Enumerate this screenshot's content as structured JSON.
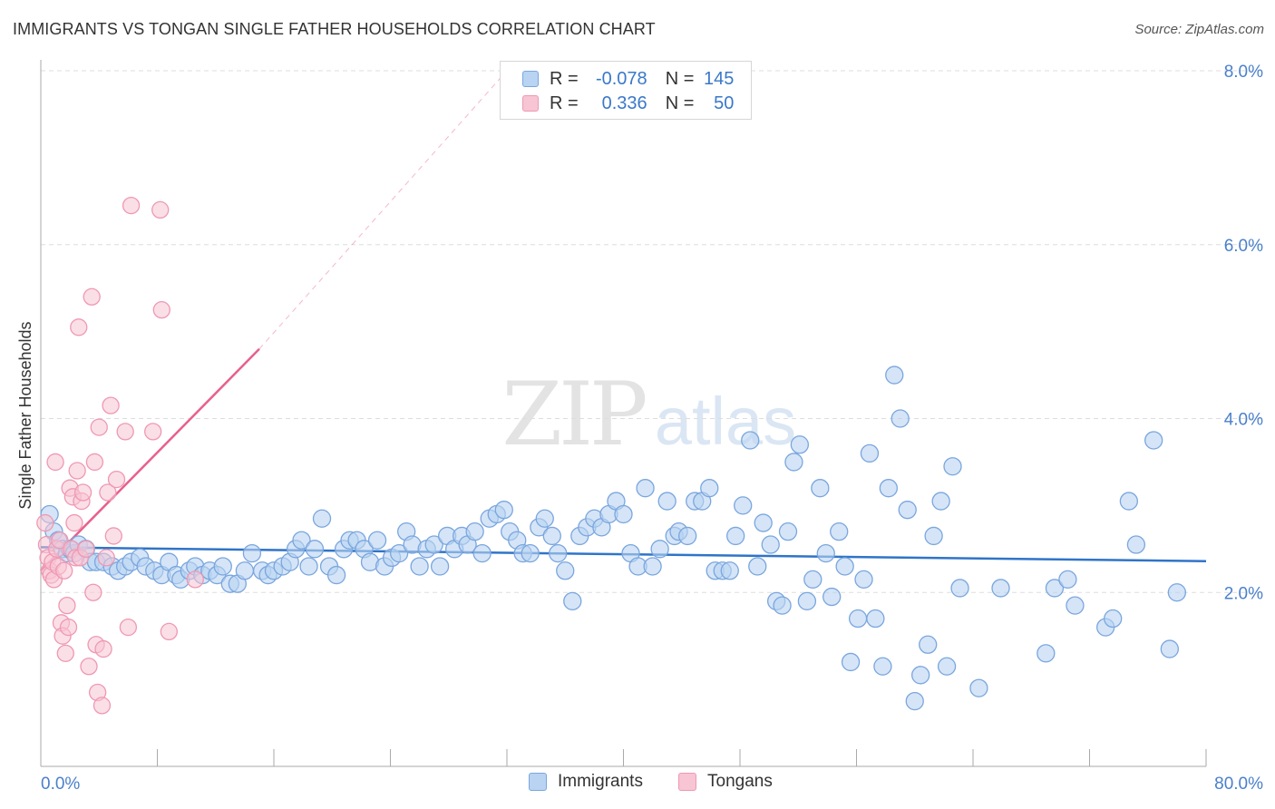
{
  "title": "IMMIGRANTS VS TONGAN SINGLE FATHER HOUSEHOLDS CORRELATION CHART",
  "source": "Source: ZipAtlas.com",
  "colors": {
    "immigrants_fill": "#b9d3f2",
    "immigrants_stroke": "#7aa6de",
    "immigrants_line": "#2f74c8",
    "tongans_fill": "#f7c5d4",
    "tongans_stroke": "#ef98b3",
    "tongans_line": "#e8608c",
    "axis_text": "#4a80cc",
    "grid": "#dddddd"
  },
  "legend_stats": [
    {
      "series": "Immigrants",
      "r_label": "R =",
      "r_value": "-0.078",
      "n_label": "N =",
      "n_value": "145"
    },
    {
      "series": "Tongans",
      "r_label": "R =",
      "r_value": "0.336",
      "n_label": "N =",
      "n_value": "50"
    }
  ],
  "chart_data": {
    "type": "scatter",
    "title": "IMMIGRANTS VS TONGAN SINGLE FATHER HOUSEHOLDS CORRELATION CHART",
    "xlabel": "",
    "ylabel": "Single Father Households",
    "xlim": [
      0,
      80
    ],
    "ylim": [
      0,
      8
    ],
    "x_tick_labels": [
      "0.0%",
      "80.0%"
    ],
    "y_ticks": [
      2,
      4,
      6,
      8
    ],
    "y_tick_labels": [
      "2.0%",
      "4.0%",
      "6.0%",
      "8.0%"
    ],
    "grid": "horizontal dashed",
    "legend": "bottom-center",
    "watermark": "ZIPatlas",
    "series": [
      {
        "name": "Immigrants",
        "r": -0.078,
        "n": 145,
        "trend": {
          "x": [
            0,
            80
          ],
          "y": [
            2.52,
            2.36
          ]
        },
        "points": [
          [
            0.6,
            2.9
          ],
          [
            0.9,
            2.7
          ],
          [
            1.2,
            2.6
          ],
          [
            1.5,
            2.5
          ],
          [
            1.8,
            2.45
          ],
          [
            2.0,
            2.5
          ],
          [
            2.3,
            2.45
          ],
          [
            2.6,
            2.55
          ],
          [
            3.1,
            2.5
          ],
          [
            3.4,
            2.35
          ],
          [
            3.8,
            2.35
          ],
          [
            4.3,
            2.35
          ],
          [
            4.9,
            2.3
          ],
          [
            5.3,
            2.25
          ],
          [
            5.8,
            2.3
          ],
          [
            6.2,
            2.35
          ],
          [
            6.8,
            2.4
          ],
          [
            7.2,
            2.3
          ],
          [
            7.8,
            2.25
          ],
          [
            8.3,
            2.2
          ],
          [
            8.8,
            2.35
          ],
          [
            9.3,
            2.2
          ],
          [
            9.6,
            2.15
          ],
          [
            10.2,
            2.25
          ],
          [
            10.6,
            2.3
          ],
          [
            11.1,
            2.2
          ],
          [
            11.6,
            2.25
          ],
          [
            12.1,
            2.2
          ],
          [
            12.5,
            2.3
          ],
          [
            13.0,
            2.1
          ],
          [
            13.5,
            2.1
          ],
          [
            14.0,
            2.25
          ],
          [
            14.5,
            2.45
          ],
          [
            15.2,
            2.25
          ],
          [
            15.6,
            2.2
          ],
          [
            16.0,
            2.25
          ],
          [
            16.6,
            2.3
          ],
          [
            17.1,
            2.35
          ],
          [
            17.5,
            2.5
          ],
          [
            17.9,
            2.6
          ],
          [
            18.4,
            2.3
          ],
          [
            18.8,
            2.5
          ],
          [
            19.3,
            2.85
          ],
          [
            19.8,
            2.3
          ],
          [
            20.3,
            2.2
          ],
          [
            20.8,
            2.5
          ],
          [
            21.2,
            2.6
          ],
          [
            21.7,
            2.6
          ],
          [
            22.2,
            2.5
          ],
          [
            22.6,
            2.35
          ],
          [
            23.1,
            2.6
          ],
          [
            23.6,
            2.3
          ],
          [
            24.1,
            2.4
          ],
          [
            24.6,
            2.45
          ],
          [
            25.1,
            2.7
          ],
          [
            25.5,
            2.55
          ],
          [
            26.0,
            2.3
          ],
          [
            26.5,
            2.5
          ],
          [
            27.0,
            2.55
          ],
          [
            27.4,
            2.3
          ],
          [
            27.9,
            2.65
          ],
          [
            28.4,
            2.5
          ],
          [
            28.9,
            2.65
          ],
          [
            29.3,
            2.55
          ],
          [
            29.8,
            2.7
          ],
          [
            30.3,
            2.45
          ],
          [
            30.8,
            2.85
          ],
          [
            31.3,
            2.9
          ],
          [
            31.8,
            2.95
          ],
          [
            32.2,
            2.7
          ],
          [
            32.7,
            2.6
          ],
          [
            33.1,
            2.45
          ],
          [
            33.6,
            2.45
          ],
          [
            34.2,
            2.75
          ],
          [
            34.6,
            2.85
          ],
          [
            35.1,
            2.65
          ],
          [
            35.5,
            2.45
          ],
          [
            36.0,
            2.25
          ],
          [
            36.5,
            1.9
          ],
          [
            37.0,
            2.65
          ],
          [
            37.5,
            2.75
          ],
          [
            38.0,
            2.85
          ],
          [
            38.5,
            2.75
          ],
          [
            39.0,
            2.9
          ],
          [
            39.5,
            3.05
          ],
          [
            40.0,
            2.9
          ],
          [
            40.5,
            2.45
          ],
          [
            41.0,
            2.3
          ],
          [
            41.5,
            3.2
          ],
          [
            42.0,
            2.3
          ],
          [
            42.5,
            2.5
          ],
          [
            43.0,
            3.05
          ],
          [
            43.5,
            2.65
          ],
          [
            43.8,
            2.7
          ],
          [
            44.4,
            2.65
          ],
          [
            44.9,
            3.05
          ],
          [
            45.4,
            3.05
          ],
          [
            45.9,
            3.2
          ],
          [
            46.3,
            2.25
          ],
          [
            46.8,
            2.25
          ],
          [
            47.3,
            2.25
          ],
          [
            47.7,
            2.65
          ],
          [
            48.2,
            3.0
          ],
          [
            48.7,
            3.75
          ],
          [
            49.2,
            2.3
          ],
          [
            49.6,
            2.8
          ],
          [
            50.1,
            2.55
          ],
          [
            50.5,
            1.9
          ],
          [
            50.9,
            1.85
          ],
          [
            51.3,
            2.7
          ],
          [
            51.7,
            3.5
          ],
          [
            52.1,
            3.7
          ],
          [
            52.6,
            1.9
          ],
          [
            53.0,
            2.15
          ],
          [
            53.5,
            3.2
          ],
          [
            53.9,
            2.45
          ],
          [
            54.3,
            1.95
          ],
          [
            54.8,
            2.7
          ],
          [
            55.2,
            2.3
          ],
          [
            55.6,
            1.2
          ],
          [
            56.1,
            1.7
          ],
          [
            56.5,
            2.15
          ],
          [
            56.9,
            3.6
          ],
          [
            57.3,
            1.7
          ],
          [
            57.8,
            1.15
          ],
          [
            58.2,
            3.2
          ],
          [
            58.6,
            4.5
          ],
          [
            59.0,
            4.0
          ],
          [
            59.5,
            2.95
          ],
          [
            60.0,
            0.75
          ],
          [
            60.4,
            1.05
          ],
          [
            60.9,
            1.4
          ],
          [
            61.3,
            2.65
          ],
          [
            61.8,
            3.05
          ],
          [
            62.2,
            1.15
          ],
          [
            62.6,
            3.45
          ],
          [
            63.1,
            2.05
          ],
          [
            64.4,
            0.9
          ],
          [
            65.9,
            2.05
          ],
          [
            69.0,
            1.3
          ],
          [
            69.6,
            2.05
          ],
          [
            70.5,
            2.15
          ],
          [
            71.0,
            1.85
          ],
          [
            73.1,
            1.6
          ],
          [
            73.6,
            1.7
          ],
          [
            74.7,
            3.05
          ],
          [
            75.2,
            2.55
          ],
          [
            76.4,
            3.75
          ],
          [
            77.5,
            1.35
          ],
          [
            78.0,
            2.0
          ]
        ]
      },
      {
        "name": "Tongans",
        "r": 0.336,
        "n": 50,
        "trend": {
          "x": [
            0,
            15
          ],
          "y": [
            2.25,
            4.8
          ],
          "extended_to": {
            "x": 32,
            "y": 8.0
          }
        },
        "points": [
          [
            0.3,
            2.8
          ],
          [
            0.4,
            2.55
          ],
          [
            0.5,
            2.4
          ],
          [
            0.6,
            2.25
          ],
          [
            0.7,
            2.2
          ],
          [
            0.8,
            2.35
          ],
          [
            0.9,
            2.15
          ],
          [
            1.0,
            3.5
          ],
          [
            1.1,
            2.5
          ],
          [
            1.2,
            2.3
          ],
          [
            1.3,
            2.6
          ],
          [
            1.4,
            1.65
          ],
          [
            1.5,
            1.5
          ],
          [
            1.6,
            2.25
          ],
          [
            1.7,
            1.3
          ],
          [
            1.8,
            1.85
          ],
          [
            1.9,
            1.6
          ],
          [
            2.0,
            3.2
          ],
          [
            2.1,
            2.5
          ],
          [
            2.2,
            3.1
          ],
          [
            2.3,
            2.8
          ],
          [
            2.4,
            2.4
          ],
          [
            2.5,
            3.4
          ],
          [
            2.6,
            5.05
          ],
          [
            2.7,
            2.4
          ],
          [
            2.8,
            3.05
          ],
          [
            2.9,
            3.15
          ],
          [
            3.1,
            2.5
          ],
          [
            3.3,
            1.15
          ],
          [
            3.5,
            5.4
          ],
          [
            3.6,
            2.0
          ],
          [
            3.7,
            3.5
          ],
          [
            3.8,
            1.4
          ],
          [
            3.9,
            0.85
          ],
          [
            4.0,
            3.9
          ],
          [
            4.2,
            0.7
          ],
          [
            4.3,
            1.35
          ],
          [
            4.5,
            2.4
          ],
          [
            4.6,
            3.15
          ],
          [
            4.8,
            4.15
          ],
          [
            5.0,
            2.65
          ],
          [
            5.2,
            3.3
          ],
          [
            5.8,
            3.85
          ],
          [
            6.0,
            1.6
          ],
          [
            6.2,
            6.45
          ],
          [
            7.7,
            3.85
          ],
          [
            8.2,
            6.4
          ],
          [
            8.3,
            5.25
          ],
          [
            8.8,
            1.55
          ],
          [
            10.6,
            2.15
          ]
        ]
      }
    ]
  }
}
